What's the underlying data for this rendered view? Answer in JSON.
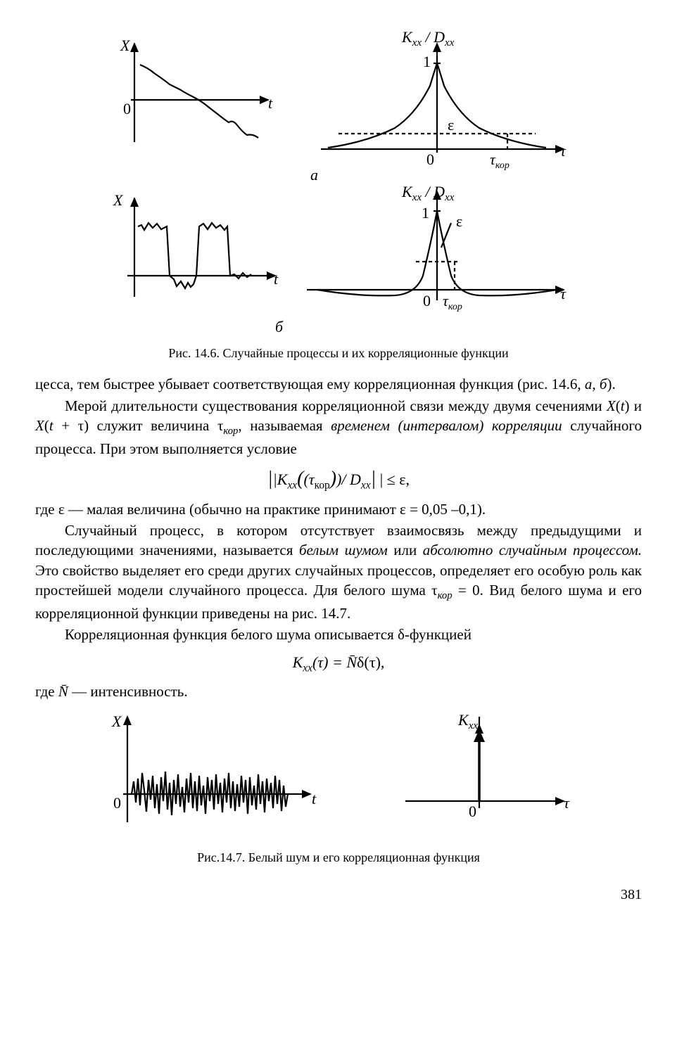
{
  "page_number": "381",
  "fig_14_6": {
    "caption": "Рис. 14.6. Случайные процессы и их корреляционные функции",
    "labels": {
      "X": "X",
      "t": "t",
      "zero": "0",
      "one": "1",
      "eps": "ε",
      "tau": "τ",
      "tau_kop": "τ",
      "tau_kop_sub": "кор",
      "KxxDxx": "K",
      "a": "а",
      "b": "б"
    },
    "style": {
      "stroke": "#000000",
      "stroke_width": 2.2,
      "dash": "4 3",
      "font_family": "Times New Roman",
      "font_size_axis": 22,
      "font_size_label": 22
    }
  },
  "fig_14_7": {
    "caption": "Рис.14.7. Белый шум и его корреляционная функция",
    "labels": {
      "X": "X",
      "t": "t",
      "zero": "0",
      "Kxx": "K",
      "tau": "τ"
    },
    "style": {
      "stroke": "#000000",
      "stroke_width": 2.2
    },
    "noise_points": [
      [
        0,
        0
      ],
      [
        3,
        18
      ],
      [
        6,
        -12
      ],
      [
        9,
        22
      ],
      [
        12,
        -16
      ],
      [
        15,
        30
      ],
      [
        18,
        5
      ],
      [
        21,
        -25
      ],
      [
        24,
        20
      ],
      [
        27,
        -8
      ],
      [
        30,
        26
      ],
      [
        33,
        -20
      ],
      [
        36,
        14
      ],
      [
        39,
        -28
      ],
      [
        42,
        24
      ],
      [
        45,
        -10
      ],
      [
        48,
        32
      ],
      [
        51,
        -22
      ],
      [
        54,
        16
      ],
      [
        57,
        -30
      ],
      [
        60,
        20
      ],
      [
        63,
        -14
      ],
      [
        66,
        28
      ],
      [
        69,
        -18
      ],
      [
        72,
        10
      ],
      [
        75,
        -26
      ],
      [
        78,
        22
      ],
      [
        81,
        -12
      ],
      [
        84,
        30
      ],
      [
        87,
        -20
      ],
      [
        90,
        18
      ],
      [
        93,
        -24
      ],
      [
        96,
        26
      ],
      [
        99,
        -16
      ],
      [
        102,
        12
      ],
      [
        105,
        -28
      ],
      [
        108,
        24
      ],
      [
        111,
        -10
      ],
      [
        114,
        20
      ],
      [
        117,
        -22
      ],
      [
        120,
        28
      ],
      [
        123,
        -14
      ],
      [
        126,
        16
      ],
      [
        129,
        -26
      ],
      [
        132,
        22
      ],
      [
        135,
        -12
      ],
      [
        138,
        30
      ],
      [
        141,
        -20
      ],
      [
        144,
        18
      ],
      [
        147,
        -24
      ],
      [
        150,
        14
      ],
      [
        153,
        -18
      ],
      [
        156,
        26
      ],
      [
        159,
        -12
      ],
      [
        162,
        20
      ],
      [
        165,
        -28
      ],
      [
        168,
        24
      ],
      [
        171,
        -16
      ],
      [
        174,
        12
      ],
      [
        177,
        -22
      ],
      [
        180,
        28
      ],
      [
        183,
        -14
      ],
      [
        186,
        18
      ],
      [
        189,
        -26
      ],
      [
        192,
        22
      ],
      [
        195,
        -10
      ],
      [
        198,
        16
      ],
      [
        201,
        -20
      ],
      [
        204,
        26
      ],
      [
        207,
        -14
      ],
      [
        210,
        20
      ],
      [
        213,
        -24
      ],
      [
        216,
        12
      ],
      [
        219,
        -18
      ],
      [
        222,
        0
      ]
    ]
  },
  "paragraphs": {
    "p1a": "цесса, тем быстрее убывает соответствующая ему корреляционная фун­кция (рис. 14.6, ",
    "p1b": "а, б",
    "p1c": ").",
    "p2a": "Мерой длительности существования корреляционной связи между дву­мя сечениями ",
    "p2b": "X",
    "p2c": "(",
    "p2d": "t",
    "p2e": ") и ",
    "p2f": "X",
    "p2g": "(",
    "p2h": "t",
    "p2i": " + τ) служит величина τ",
    "p2j": "кор",
    "p2k": ", называемая ",
    "p2l": "временем (ин­тервалом) корреляции",
    "p2m": " случайного процесса. При этом выполняется условие",
    "eq1a": "|K",
    "eq1b": "xx",
    "eq1c": "(τ",
    "eq1d": "кор",
    "eq1e": ")/ D",
    "eq1f": "xx",
    "eq1g": "| ≤ ε,",
    "p3": "где ε — малая величина (обычно на практике принимают ε = 0,05 –0,1).",
    "p4a": "Случайный процесс, в котором отсутствует взаимосвязь между пре­дыдущими и последующими значениями, называется ",
    "p4b": "белым шумом",
    "p4c": " или ",
    "p4d": "абсолютно случайным процессом.",
    "p4e": " Это свойство выделяет его среди других случайных процессов, определяет его особую роль как простей­шей модели случайного процесса. Для белого шума τ",
    "p4f": "кор",
    "p4g": " = 0. Вид белого шума и его корреляционной функции приведены на рис. 14.7.",
    "p5": "Корреляционная функция белого шума описывается δ-функцией",
    "eq2a": "K",
    "eq2b": "xx",
    "eq2c": "(τ) = ",
    "eq2d": "N̄",
    "eq2e": "δ(τ),",
    "p6a": "где ",
    "p6b": "N̄",
    "p6c": " — интенсивность."
  }
}
